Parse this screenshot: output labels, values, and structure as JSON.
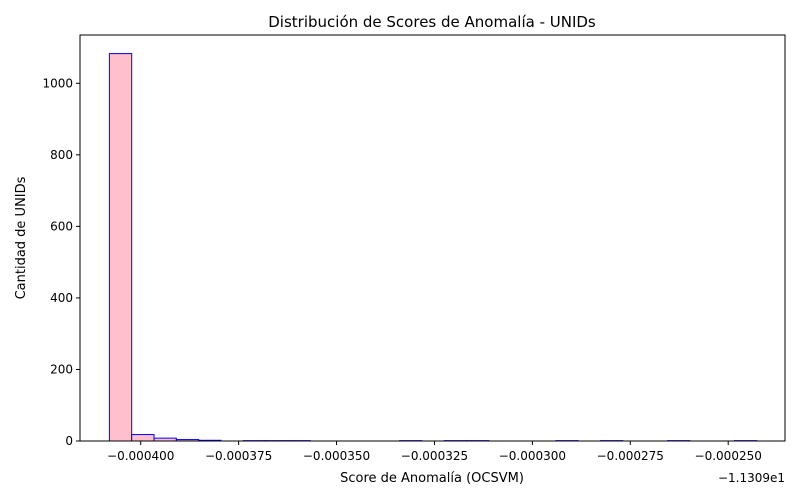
{
  "chart_data": {
    "type": "bar",
    "title": "Distribución de Scores de Anomalía - UNIDs",
    "xlabel": "Score de Anomalía (OCSVM)",
    "ylabel": "Cantidad de UNIDs",
    "x_offset_label": "−1.1309e1",
    "x_offset": -11.309,
    "xlim": [
      -0.0004155,
      -0.0002355
    ],
    "ylim": [
      0,
      1135
    ],
    "x_ticks": [
      -0.0004,
      -0.000375,
      -0.00035,
      -0.000325,
      -0.0003,
      -0.000275,
      -0.00025
    ],
    "x_tick_labels": [
      "−0.000400",
      "−0.000375",
      "−0.000350",
      "−0.000325",
      "−0.000300",
      "−0.000275",
      "−0.000250"
    ],
    "y_ticks": [
      0,
      200,
      400,
      600,
      800,
      1000
    ],
    "y_tick_labels": [
      "0",
      "200",
      "400",
      "600",
      "800",
      "1000"
    ],
    "bin_edges": [
      -0.000408,
      -0.0004023,
      -0.0003966,
      -0.0003909,
      -0.0003852,
      -0.0003795,
      -0.0003738,
      -0.0003681,
      -0.0003624,
      -0.0003567,
      -0.000351,
      -0.0003453,
      -0.0003396,
      -0.0003339,
      -0.0003282,
      -0.0003225,
      -0.0003168,
      -0.0003111,
      -0.0003054,
      -0.0002997,
      -0.000294,
      -0.0002883,
      -0.0002826,
      -0.0002769,
      -0.0002712,
      -0.0002655,
      -0.0002598,
      -0.0002541,
      -0.0002484,
      -0.0002427,
      -0.000237
    ],
    "counts": [
      1083,
      18,
      8,
      4,
      2,
      0,
      1,
      1,
      1,
      0,
      0,
      0,
      0,
      1,
      0,
      1,
      1,
      0,
      0,
      0,
      1,
      0,
      1,
      0,
      0,
      1,
      0,
      0,
      1,
      0
    ],
    "bar_fill": "#ffc0cb",
    "bar_edge": "#0000ff",
    "grid": false,
    "legend": "none"
  }
}
